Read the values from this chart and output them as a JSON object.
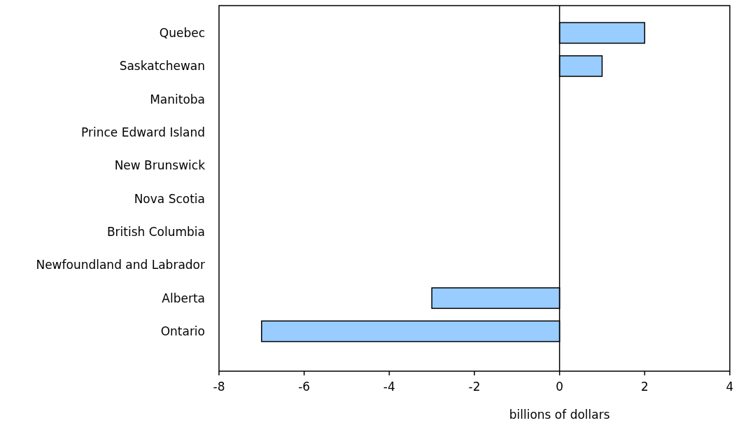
{
  "chart_data": {
    "type": "bar",
    "orientation": "horizontal",
    "xlabel": "billions of dollars",
    "categories": [
      "Quebec",
      "Saskatchewan",
      "Manitoba",
      "Prince Edward Island",
      "New Brunswick",
      "Nova Scotia",
      "British Columbia",
      "Newfoundland and Labrador",
      "Alberta",
      "Ontario"
    ],
    "values": [
      2,
      1,
      0,
      0,
      0,
      0,
      0,
      0,
      -3,
      -7
    ],
    "color": "#99ccff",
    "xlim": [
      -8,
      4
    ],
    "xticks": [
      -8,
      -6,
      -4,
      -2,
      0,
      2,
      4
    ]
  }
}
